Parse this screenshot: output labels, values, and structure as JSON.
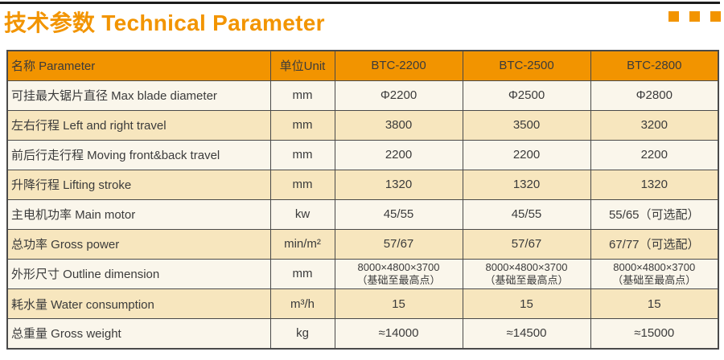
{
  "header": {
    "title": "技术参数 Technical Parameter"
  },
  "colors": {
    "accent_orange": "#F29400",
    "row_cream": "#FAF6EB",
    "row_tan": "#F7E6BE",
    "border_dark": "#4A4A4A",
    "top_rule_black": "#1C1C1C",
    "header_text_light": "#FFFFFF",
    "body_text": "#3B3B3B"
  },
  "table": {
    "columns": [
      "名称 Parameter",
      "单位Unit",
      "BTC-2200",
      "BTC-2500",
      "BTC-2800"
    ],
    "rows": [
      {
        "name": "可挂最大锯片直径 Max blade diameter",
        "unit": "mm",
        "v1": "Φ2200",
        "v2": "Φ2500",
        "v3": "Φ2800"
      },
      {
        "name": "左右行程 Left and right travel",
        "unit": "mm",
        "v1": "3800",
        "v2": "3500",
        "v3": "3200"
      },
      {
        "name": "前后行走行程 Moving front&back travel",
        "unit": "mm",
        "v1": "2200",
        "v2": "2200",
        "v3": "2200"
      },
      {
        "name": "升降行程 Lifting stroke",
        "unit": "mm",
        "v1": "1320",
        "v2": "1320",
        "v3": "1320"
      },
      {
        "name": "主电机功率 Main motor",
        "unit": "kw",
        "v1": "45/55",
        "v2": "45/55",
        "v3": "55/65（可选配）"
      },
      {
        "name": "总功率 Gross power",
        "unit": "min/m²",
        "v1": "57/67",
        "v2": "57/67",
        "v3": "67/77（可选配）"
      },
      {
        "name": "外形尺寸 Outline dimension",
        "unit": "mm",
        "v1": "8000×4800×3700\n（基础至最高点）",
        "v2": "8000×4800×3700\n（基础至最高点）",
        "v3": "8000×4800×3700\n（基础至最高点）"
      },
      {
        "name": "耗水量 Water consumption",
        "unit": "m³/h",
        "v1": "15",
        "v2": "15",
        "v3": "15"
      },
      {
        "name": "总重量 Gross weight",
        "unit": "kg",
        "v1": "≈14000",
        "v2": "≈14500",
        "v3": "≈15000"
      }
    ]
  }
}
